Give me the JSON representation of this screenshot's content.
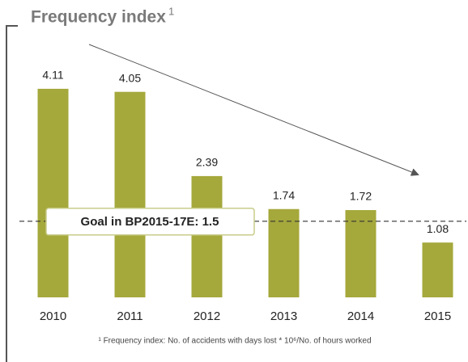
{
  "chart_data": {
    "type": "bar",
    "title": "Frequency index",
    "title_superscript": "1",
    "categories": [
      "2010",
      "2011",
      "2012",
      "2013",
      "2014",
      "2015"
    ],
    "values": [
      4.11,
      4.05,
      2.39,
      1.74,
      1.72,
      1.08
    ],
    "color": "#a5a83b",
    "ylim": [
      0,
      5
    ],
    "goal": {
      "value": 1.5,
      "label": "Goal in BP2015-17E: 1.5"
    },
    "footnote": "¹ Frequency index: No. of accidents with days lost * 10⁶/No. of hours worked"
  }
}
